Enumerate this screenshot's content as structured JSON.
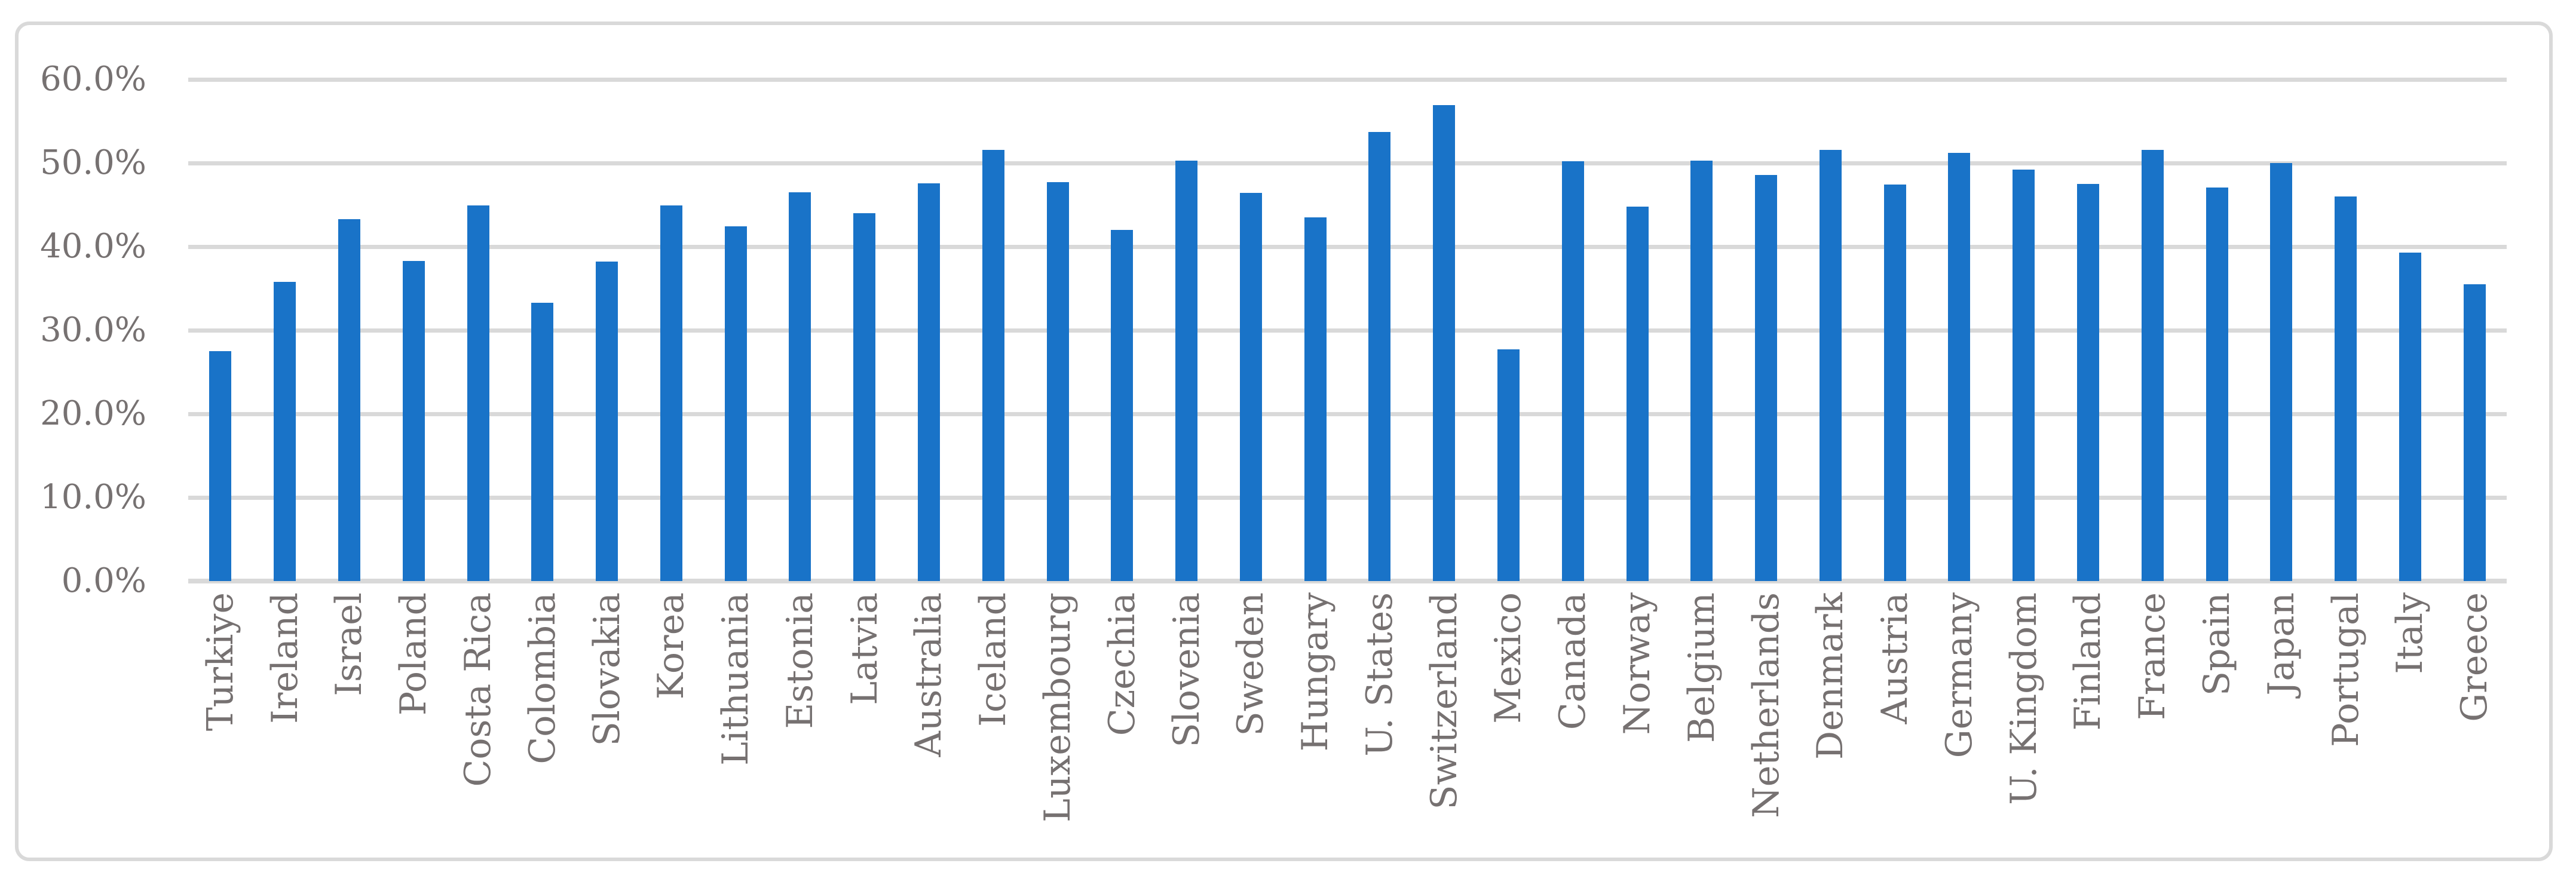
{
  "chart_data": {
    "type": "bar",
    "title": "",
    "xlabel": "",
    "ylabel": "",
    "unit": "%",
    "ylim": [
      0,
      60
    ],
    "ytick_step": 10,
    "ytick_labels": [
      "0.0%",
      "10.0%",
      "20.0%",
      "30.0%",
      "40.0%",
      "50.0%",
      "60.0%"
    ],
    "grid": true,
    "legend": false,
    "categories": [
      "Turkiye",
      "Ireland",
      "Israel",
      "Poland",
      "Costa Rica",
      "Colombia",
      "Slovakia",
      "Korea",
      "Lithuania",
      "Estonia",
      "Latvia",
      "Australia",
      "Iceland",
      "Luxembourg",
      "Czechia",
      "Slovenia",
      "Sweden",
      "Hungary",
      "U. States",
      "Switzerland",
      "Mexico",
      "Canada",
      "Norway",
      "Belgium",
      "Netherlands",
      "Denmark",
      "Austria",
      "Germany",
      "U. Kingdom",
      "Finland",
      "France",
      "Spain",
      "Japan",
      "Portugal",
      "Italy",
      "Greece"
    ],
    "values": [
      27.5,
      35.8,
      43.3,
      38.3,
      44.9,
      33.3,
      38.2,
      44.9,
      42.4,
      46.5,
      44.0,
      47.6,
      51.6,
      47.7,
      42.0,
      50.3,
      46.4,
      43.5,
      53.7,
      56.9,
      27.7,
      50.2,
      44.8,
      50.3,
      48.6,
      51.6,
      47.4,
      51.2,
      49.2,
      47.5,
      51.6,
      47.1,
      50.0,
      46.0,
      39.3,
      35.5
    ],
    "colors": {
      "bar": "#1973C8",
      "gridline": "#D9D9D9",
      "axis_line": "#D9D9D9",
      "tick_label": "#767171",
      "frame_border": "#D9D9D9",
      "background": "#FFFFFF"
    }
  }
}
